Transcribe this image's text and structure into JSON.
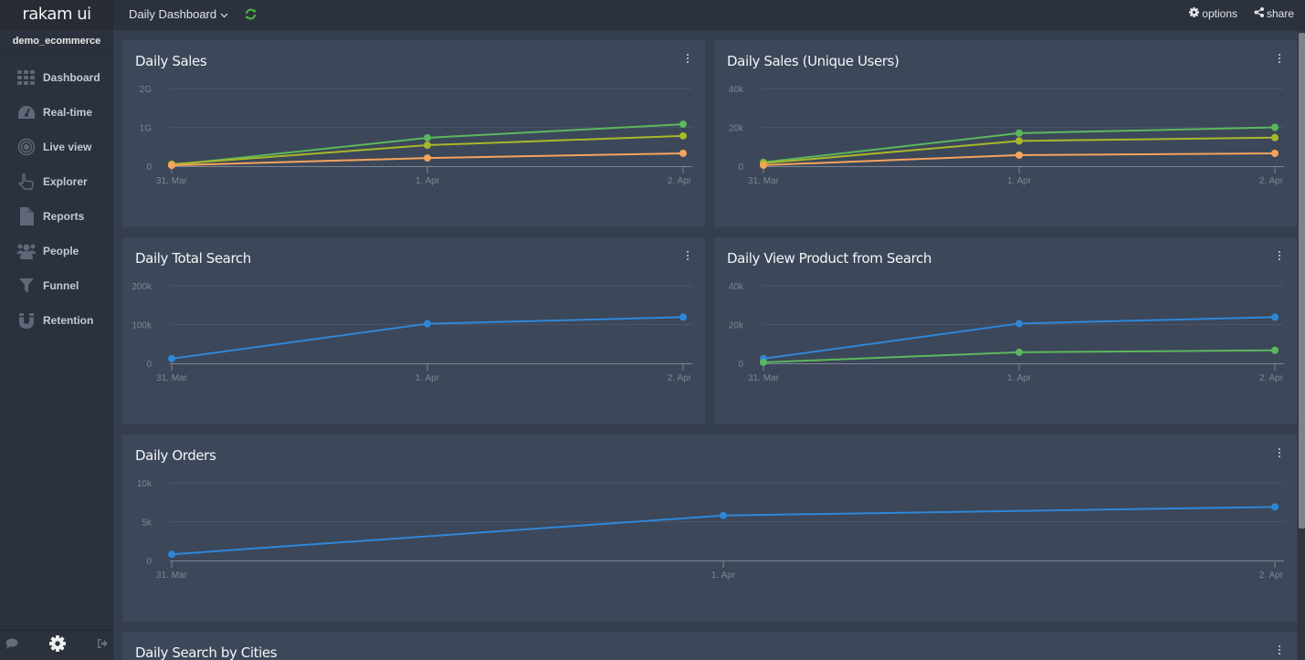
{
  "app": {
    "brand": "rakam ui",
    "project": "demo_ecommerce"
  },
  "sidebar": {
    "items": [
      {
        "label": "Dashboard",
        "icon": "grid-icon"
      },
      {
        "label": "Real-time",
        "icon": "speedometer-icon"
      },
      {
        "label": "Live view",
        "icon": "target-icon"
      },
      {
        "label": "Explorer",
        "icon": "hand-pointer-icon"
      },
      {
        "label": "Reports",
        "icon": "file-icon"
      },
      {
        "label": "People",
        "icon": "users-icon"
      },
      {
        "label": "Funnel",
        "icon": "filter-icon"
      },
      {
        "label": "Retention",
        "icon": "magnet-icon"
      }
    ],
    "footer": {
      "chat_icon": "comment-icon",
      "settings_icon": "gear-icon",
      "logout_icon": "sign-out-icon"
    }
  },
  "topbar": {
    "dashboard_title": "Daily Dashboard",
    "options_label": "options",
    "share_label": "share"
  },
  "colors": {
    "green": "#5cb85c",
    "yellow": "#a8b82a",
    "orange": "#f7a35c",
    "blue": "#2f87d8",
    "panel_bg": "#3c4759",
    "page_bg": "#353e4d",
    "sidebar_bg": "#2c323d",
    "refresh": "#4cb848"
  },
  "panels": [
    {
      "title": "Daily Sales"
    },
    {
      "title": "Daily Sales (Unique Users)"
    },
    {
      "title": "Daily Total Search"
    },
    {
      "title": "Daily View Product from Search"
    },
    {
      "title": "Daily Orders"
    },
    {
      "title": "Daily Search by Cities"
    }
  ],
  "chart_data": [
    {
      "type": "line",
      "title": "Daily Sales",
      "categories": [
        "31. Mar",
        "1. Apr",
        "2. Apr"
      ],
      "yticks": [
        "0",
        "1G",
        "2G"
      ],
      "ylim": [
        0,
        2000000000
      ],
      "grid": true,
      "series": [
        {
          "name": "series-green",
          "color": "#5cb85c",
          "values": [
            30000000,
            730000000,
            1080000000
          ]
        },
        {
          "name": "series-yellow",
          "color": "#a8b82a",
          "values": [
            50000000,
            540000000,
            780000000
          ]
        },
        {
          "name": "series-orange",
          "color": "#f7a35c",
          "values": [
            20000000,
            210000000,
            330000000
          ]
        }
      ]
    },
    {
      "type": "line",
      "title": "Daily Sales (Unique Users)",
      "categories": [
        "31. Mar",
        "1. Apr",
        "2. Apr"
      ],
      "yticks": [
        "0",
        "20k",
        "40k"
      ],
      "ylim": [
        0,
        40000
      ],
      "grid": true,
      "series": [
        {
          "name": "series-green",
          "color": "#5cb85c",
          "values": [
            2000,
            17000,
            20000
          ]
        },
        {
          "name": "series-yellow",
          "color": "#a8b82a",
          "values": [
            1500,
            13000,
            14700
          ]
        },
        {
          "name": "series-orange",
          "color": "#f7a35c",
          "values": [
            500,
            5700,
            6600
          ]
        }
      ]
    },
    {
      "type": "line",
      "title": "Daily Total Search",
      "categories": [
        "31. Mar",
        "1. Apr",
        "2. Apr"
      ],
      "yticks": [
        "0",
        "100k",
        "200k"
      ],
      "ylim": [
        0,
        200000
      ],
      "grid": true,
      "series": [
        {
          "name": "series-blue",
          "color": "#2f87d8",
          "values": [
            12000,
            102000,
            119000
          ]
        }
      ]
    },
    {
      "type": "line",
      "title": "Daily View Product from Search",
      "categories": [
        "31. Mar",
        "1. Apr",
        "2. Apr"
      ],
      "yticks": [
        "0",
        "20k",
        "40k"
      ],
      "ylim": [
        0,
        40000
      ],
      "grid": true,
      "series": [
        {
          "name": "series-blue",
          "color": "#2f87d8",
          "values": [
            2400,
            20500,
            23800
          ]
        },
        {
          "name": "series-green",
          "color": "#5cb85c",
          "values": [
            500,
            5700,
            6700
          ]
        }
      ]
    },
    {
      "type": "line",
      "title": "Daily Orders",
      "categories": [
        "31. Mar",
        "1. Apr",
        "2. Apr"
      ],
      "yticks": [
        "0",
        "5k",
        "10k"
      ],
      "ylim": [
        0,
        10000
      ],
      "grid": true,
      "series": [
        {
          "name": "series-blue",
          "color": "#2f87d8",
          "values": [
            800,
            5800,
            6900
          ]
        }
      ]
    }
  ]
}
